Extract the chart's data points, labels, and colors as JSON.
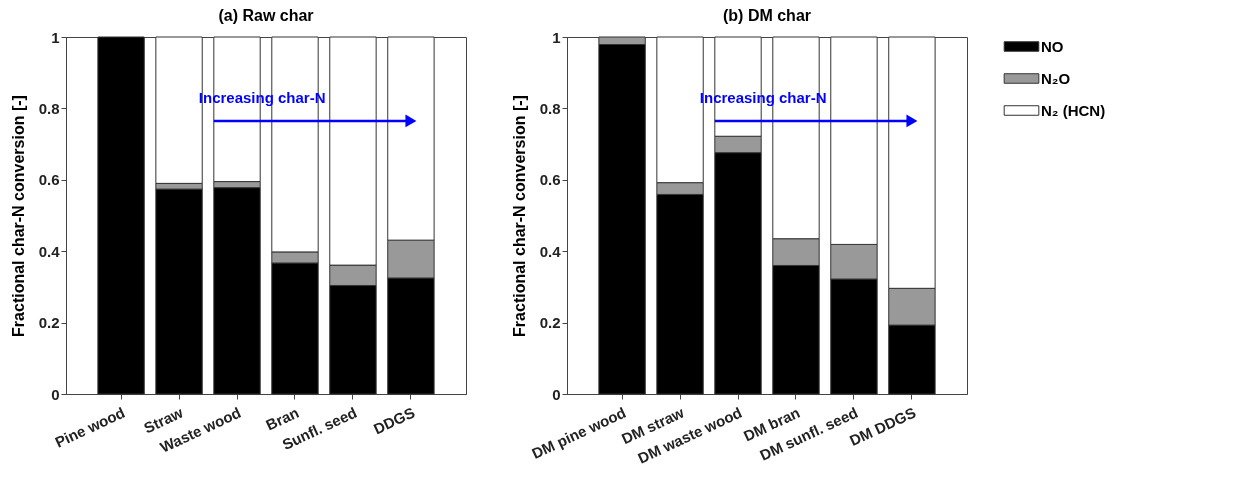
{
  "chart_data": [
    {
      "type": "bar",
      "title": "(a) Raw char",
      "ylabel": "Fractional char-N conversion [-]",
      "categories": [
        "Pine wood",
        "Straw",
        "Waste wood",
        "Bran",
        "Sunfl. seed",
        "DDGS"
      ],
      "stacked": true,
      "series": [
        {
          "color": "#000000",
          "values": [
            1.0,
            0.574,
            0.578,
            0.367,
            0.304,
            0.325
          ]
        },
        {
          "color": "#999999",
          "values": [
            0,
            0.016,
            0.017,
            0.031,
            0.057,
            0.106
          ]
        },
        {
          "color": "#ffffff",
          "values": [
            0,
            0.41,
            0.405,
            0.602,
            0.639,
            0.569
          ]
        }
      ],
      "ylim": [
        0,
        1
      ],
      "yticks": [
        0,
        0.2,
        0.4,
        0.6,
        0.8,
        1
      ],
      "grid": false,
      "legend": false,
      "annotations": [
        "Increasing char-N"
      ]
    },
    {
      "type": "bar",
      "title": "(b) DM char",
      "ylabel": "Fractional char-N conversion [-]",
      "categories": [
        "DM pine wood",
        "DM straw",
        "DM waste wood",
        "DM bran",
        "DM sunfl. seed",
        "DM DDGS"
      ],
      "stacked": true,
      "series": [
        {
          "name": "NO",
          "color": "#000000",
          "values": [
            0.979,
            0.559,
            0.676,
            0.36,
            0.322,
            0.193
          ]
        },
        {
          "name": "N₂O",
          "color": "#999999",
          "values": [
            0.021,
            0.033,
            0.046,
            0.075,
            0.097,
            0.103
          ]
        },
        {
          "name": "N₂ (HCN)",
          "color": "#ffffff",
          "values": [
            0,
            0.408,
            0.278,
            0.565,
            0.581,
            0.704
          ]
        }
      ],
      "ylim": [
        0,
        1
      ],
      "yticks": [
        0,
        0.2,
        0.4,
        0.6,
        0.8,
        1
      ],
      "grid": false,
      "legend": "right",
      "annotations": [
        "Increasing char-N"
      ]
    }
  ]
}
